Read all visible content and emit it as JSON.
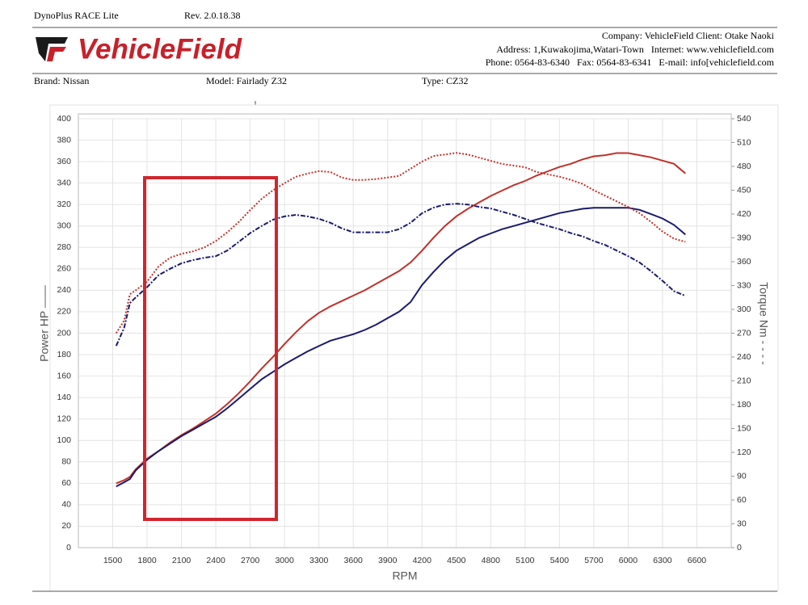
{
  "header": {
    "app": "DynoPlus RACE Lite",
    "rev": "Rev. 2.0.18.38",
    "logo": "VehicleField",
    "company_lines": [
      "Company: VehicleField Client: Otake Naoki",
      "Address: 1,Kuwakojima,Watari-Town   Internet: www.vehiclefield.com",
      "Phone: 0564-83-6340   Fax: 0564-83-6341   E-mail: info[vehiclefield.com"
    ],
    "brand": "Brand: Nissan",
    "model": "Model: Fairlady Z32",
    "type": "Type: CZ32"
  },
  "chart_data": {
    "type": "line",
    "xlabel": "RPM",
    "ylabel": "Power HP ——",
    "y2label": "Torque Nm - - - -",
    "grid": true,
    "xlim": [
      1200,
      6900
    ],
    "xticks": [
      1500,
      1800,
      2100,
      2400,
      2700,
      3000,
      3300,
      3600,
      3900,
      4200,
      4500,
      4800,
      5100,
      5400,
      5700,
      6000,
      6300,
      6600
    ],
    "ylim": [
      0,
      400
    ],
    "yticks": [
      0,
      20,
      40,
      60,
      80,
      100,
      120,
      140,
      160,
      180,
      200,
      220,
      240,
      260,
      280,
      300,
      320,
      340,
      360,
      380,
      400
    ],
    "y2lim": [
      0,
      540
    ],
    "y2ticks": [
      0,
      30,
      60,
      90,
      120,
      150,
      180,
      210,
      240,
      270,
      300,
      330,
      360,
      390,
      420,
      450,
      480,
      510,
      540
    ],
    "x": [
      1530,
      1600,
      1650,
      1700,
      1800,
      1900,
      2000,
      2100,
      2200,
      2300,
      2400,
      2500,
      2600,
      2700,
      2800,
      2900,
      3000,
      3100,
      3200,
      3300,
      3400,
      3500,
      3600,
      3700,
      3800,
      3900,
      4000,
      4100,
      4200,
      4300,
      4400,
      4500,
      4600,
      4700,
      4800,
      4900,
      5000,
      5100,
      5200,
      5300,
      5400,
      5500,
      5600,
      5700,
      5800,
      5900,
      6000,
      6100,
      6200,
      6300,
      6400,
      6500
    ],
    "series": [
      {
        "color": "#c0312b",
        "line_style": "solid",
        "values": [
          60,
          63,
          66,
          73,
          83,
          90,
          98,
          105,
          111,
          118,
          125,
          134,
          144,
          155,
          167,
          178,
          190,
          201,
          211,
          219,
          225,
          230,
          235,
          240,
          246,
          252,
          258,
          266,
          277,
          289,
          300,
          309,
          316,
          322,
          328,
          333,
          338,
          342,
          347,
          351,
          355,
          358,
          362,
          365,
          366,
          368,
          368,
          366,
          364,
          361,
          358,
          349
        ]
      },
      {
        "color": "#1a1a6e",
        "line_style": "solid",
        "values": [
          57,
          61,
          64,
          72,
          82,
          90,
          97,
          104,
          110,
          116,
          122,
          130,
          139,
          148,
          157,
          164,
          171,
          177,
          183,
          188,
          193,
          196,
          199,
          203,
          208,
          214,
          220,
          229,
          245,
          257,
          268,
          277,
          283,
          289,
          293,
          297,
          300,
          303,
          306,
          309,
          312,
          314,
          316,
          317,
          317,
          317,
          317,
          315,
          311,
          307,
          301,
          292
        ]
      },
      {
        "color": "#c0312b",
        "line_style": "dotted",
        "axis": "y2",
        "values": [
          270,
          286,
          319,
          324,
          335,
          354,
          365,
          370,
          373,
          378,
          386,
          397,
          410,
          425,
          439,
          450,
          459,
          467,
          471,
          474,
          473,
          466,
          463,
          463,
          464,
          466,
          468,
          477,
          486,
          493,
          495,
          497,
          495,
          491,
          487,
          483,
          481,
          479,
          473,
          470,
          467,
          463,
          458,
          450,
          443,
          436,
          429,
          421,
          410,
          398,
          389,
          385
        ]
      },
      {
        "color": "#1a1a6e",
        "line_style": "dashdot",
        "axis": "y2",
        "values": [
          254,
          277,
          308,
          315,
          328,
          343,
          351,
          358,
          362,
          365,
          367,
          374,
          385,
          396,
          405,
          413,
          417,
          419,
          417,
          414,
          409,
          402,
          397,
          397,
          397,
          397,
          401,
          409,
          421,
          428,
          432,
          433,
          432,
          429,
          427,
          423,
          419,
          414,
          409,
          405,
          401,
          396,
          392,
          386,
          381,
          374,
          367,
          359,
          348,
          336,
          323,
          317
        ]
      }
    ]
  }
}
